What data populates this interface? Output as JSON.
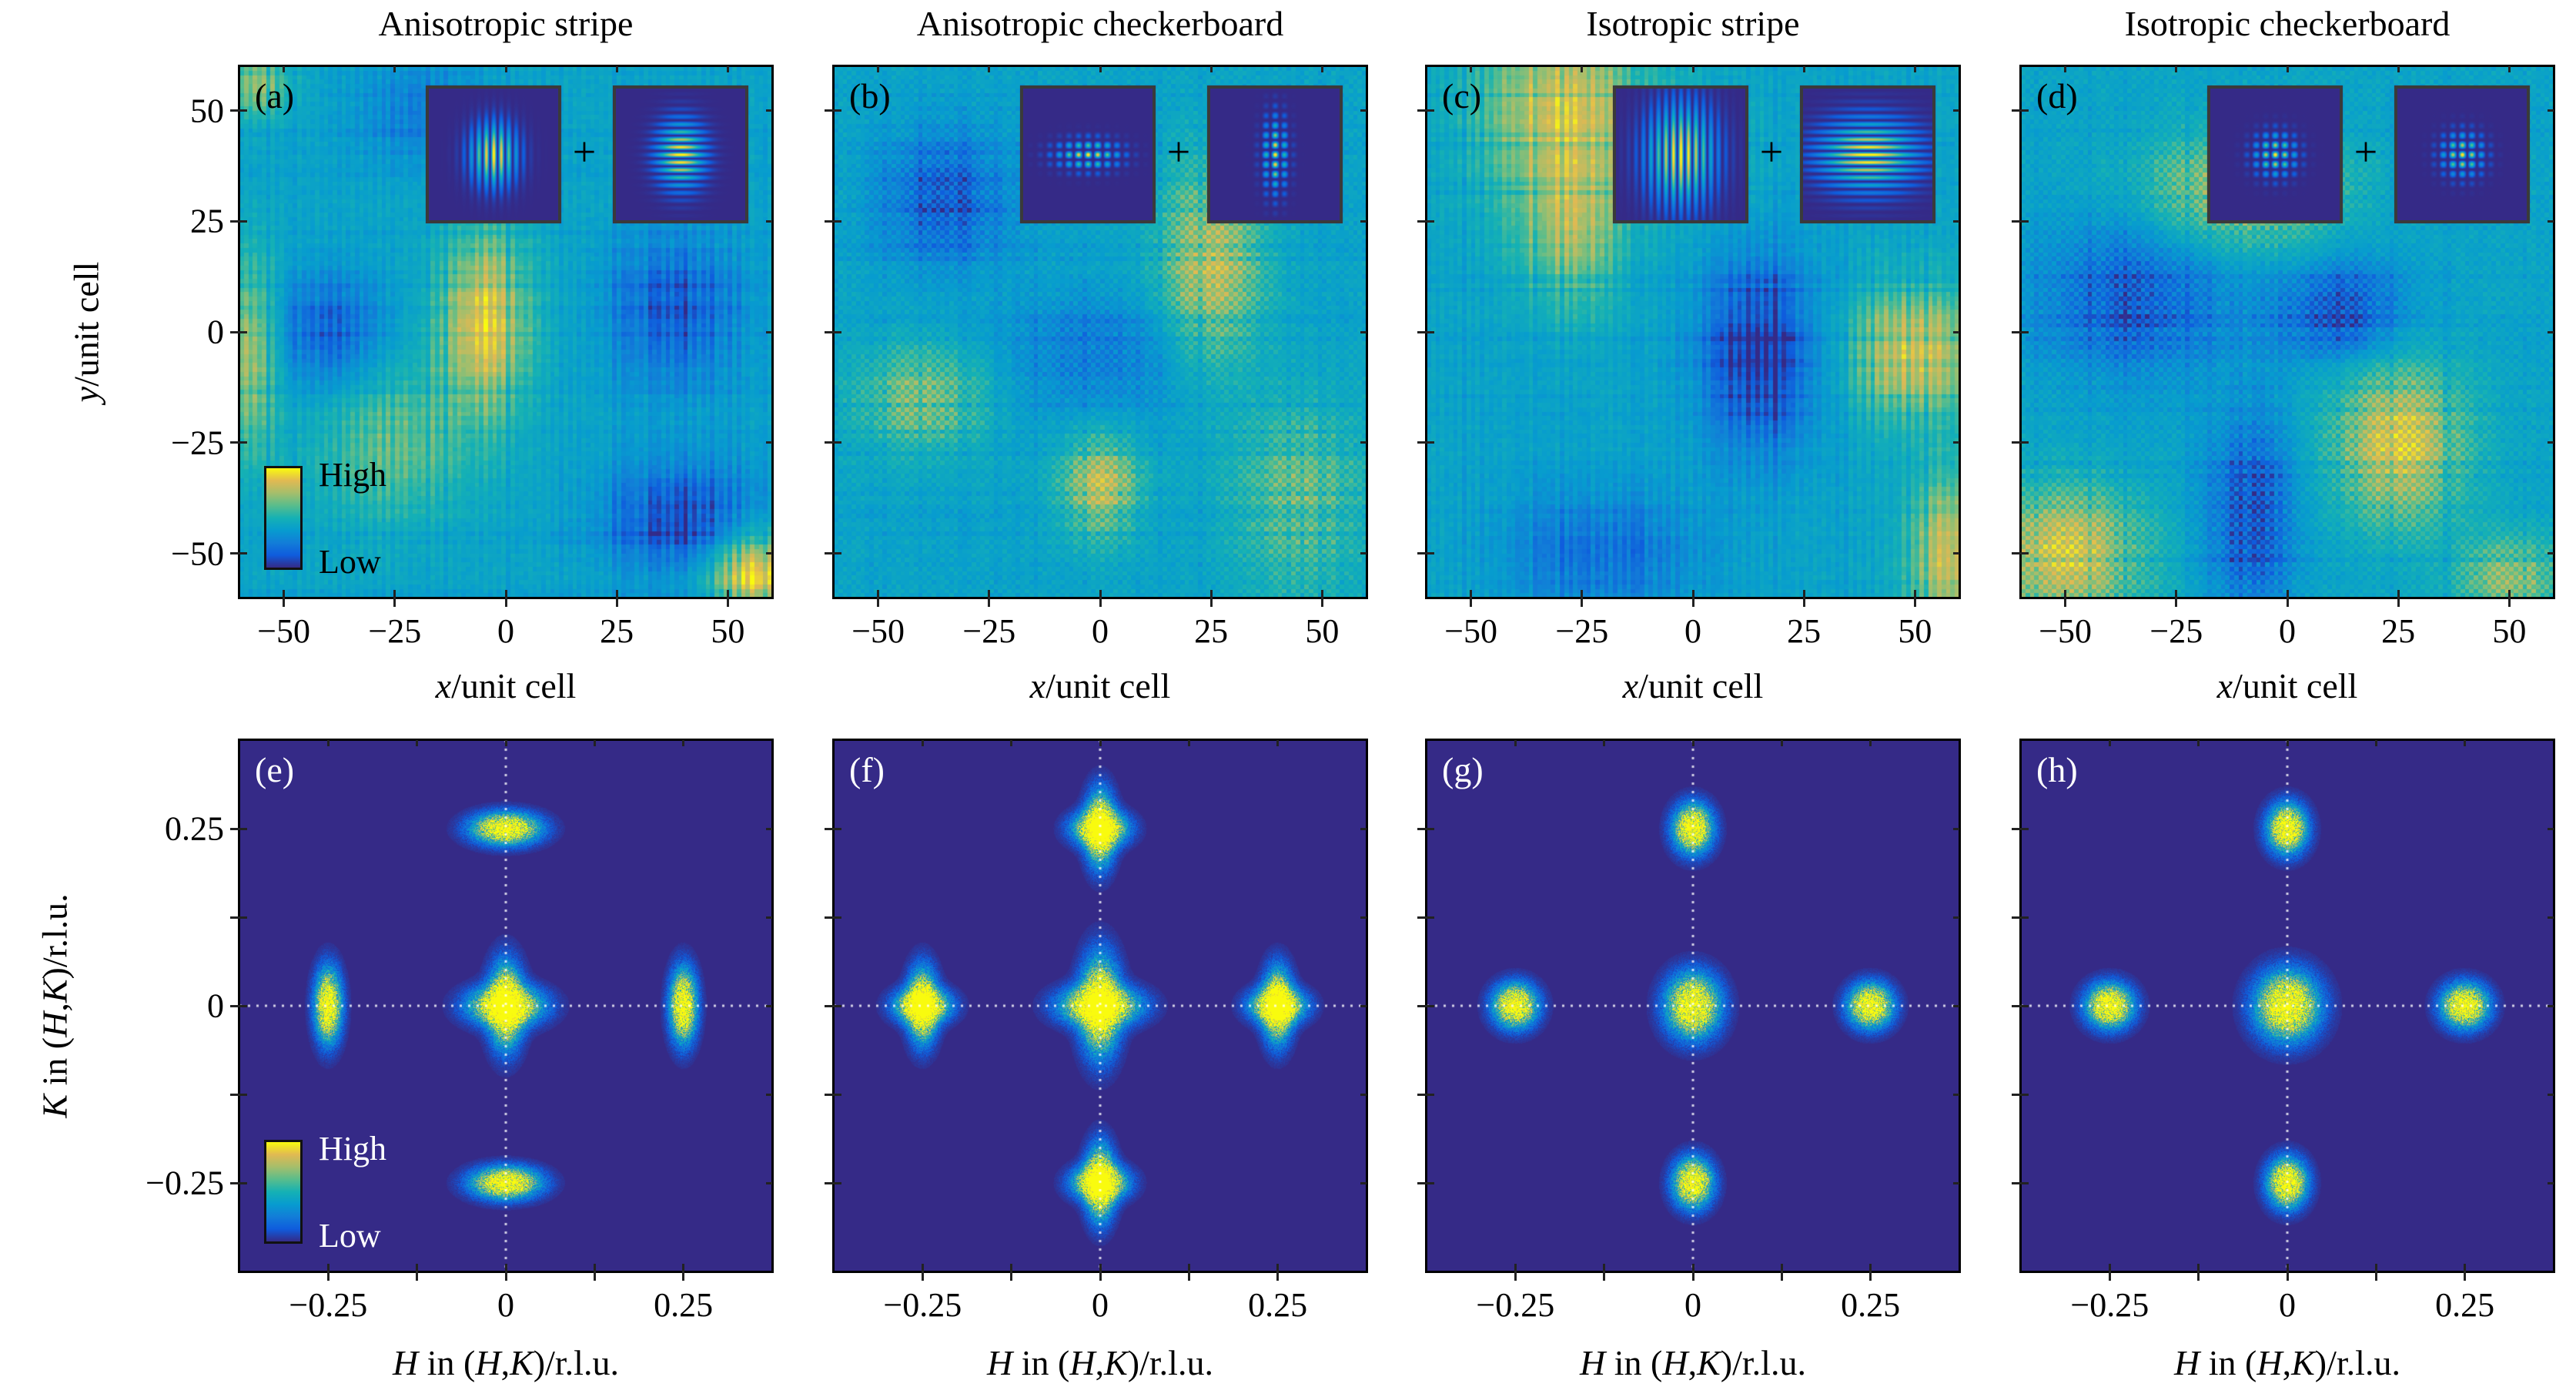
{
  "colormap": {
    "name": "parula",
    "stops": [
      "#352a87",
      "#0f5cdd",
      "#127dd8",
      "#079ccf",
      "#15b1b4",
      "#59bd8c",
      "#a5be6b",
      "#e1b952",
      "#f9fb0e"
    ]
  },
  "chart_data": [
    {
      "panel": "a",
      "type": "heatmap",
      "title": "Anisotropic stripe",
      "label": "(a)",
      "xlabel": [
        {
          "t": "x",
          "i": true
        },
        {
          "t": "/unit cell",
          "i": false
        }
      ],
      "ylabel": [
        {
          "t": "y",
          "i": true
        },
        {
          "t": "/unit cell",
          "i": false
        }
      ],
      "xlim": [
        -60,
        60
      ],
      "ylim": [
        -60,
        60
      ],
      "xticks": [
        -50,
        -25,
        0,
        25,
        50
      ],
      "xtick_labels": [
        "−50",
        "−25",
        "0",
        "25",
        "50"
      ],
      "yticks": [
        -50,
        -25,
        0,
        25,
        50
      ],
      "ytick_labels": [
        "−50",
        "−25",
        "0",
        "25",
        "50"
      ],
      "colorbar": {
        "high": "High",
        "low": "Low"
      },
      "insets": [
        {
          "pattern": "stripe",
          "modulation_axis": "x"
        },
        {
          "pattern": "stripe",
          "modulation_axis": "y"
        }
      ],
      "inset_operator": "+"
    },
    {
      "panel": "b",
      "type": "heatmap",
      "title": "Anisotropic checkerboard",
      "label": "(b)",
      "xlabel": [
        {
          "t": "x",
          "i": true
        },
        {
          "t": "/unit cell",
          "i": false
        }
      ],
      "xlim": [
        -60,
        60
      ],
      "ylim": [
        -60,
        60
      ],
      "xticks": [
        -50,
        -25,
        0,
        25,
        50
      ],
      "xtick_labels": [
        "−50",
        "−25",
        "0",
        "25",
        "50"
      ],
      "yticks": [
        -50,
        -25,
        0,
        25,
        50
      ],
      "insets": [
        {
          "pattern": "checkerboard",
          "envelope": "wide"
        },
        {
          "pattern": "checkerboard",
          "envelope": "tall"
        }
      ],
      "inset_operator": "+"
    },
    {
      "panel": "c",
      "type": "heatmap",
      "title": "Isotropic stripe",
      "label": "(c)",
      "xlabel": [
        {
          "t": "x",
          "i": true
        },
        {
          "t": "/unit cell",
          "i": false
        }
      ],
      "xlim": [
        -60,
        60
      ],
      "ylim": [
        -60,
        60
      ],
      "xticks": [
        -50,
        -25,
        0,
        25,
        50
      ],
      "xtick_labels": [
        "−50",
        "−25",
        "0",
        "25",
        "50"
      ],
      "yticks": [
        -50,
        -25,
        0,
        25,
        50
      ],
      "insets": [
        {
          "pattern": "stripe",
          "modulation_axis": "x"
        },
        {
          "pattern": "stripe",
          "modulation_axis": "y"
        }
      ],
      "inset_operator": "+"
    },
    {
      "panel": "d",
      "type": "heatmap",
      "title": "Isotropic checkerboard",
      "label": "(d)",
      "xlabel": [
        {
          "t": "x",
          "i": true
        },
        {
          "t": "/unit cell",
          "i": false
        }
      ],
      "xlim": [
        -60,
        60
      ],
      "ylim": [
        -60,
        60
      ],
      "xticks": [
        -50,
        -25,
        0,
        25,
        50
      ],
      "xtick_labels": [
        "−50",
        "−25",
        "0",
        "25",
        "50"
      ],
      "yticks": [
        -50,
        -25,
        0,
        25,
        50
      ],
      "insets": [
        {
          "pattern": "checkerboard",
          "envelope": "round"
        },
        {
          "pattern": "checkerboard",
          "envelope": "round"
        }
      ],
      "inset_operator": "+"
    },
    {
      "panel": "e",
      "type": "heatmap",
      "label": "(e)",
      "xlabel": [
        {
          "t": "H",
          "i": true
        },
        {
          "t": " in (",
          "i": false
        },
        {
          "t": "H",
          "i": true
        },
        {
          "t": ",",
          "i": false
        },
        {
          "t": "K",
          "i": true
        },
        {
          "t": ")/r.l.u.",
          "i": false
        }
      ],
      "ylabel": [
        {
          "t": "K",
          "i": true
        },
        {
          "t": " in (",
          "i": false
        },
        {
          "t": "H",
          "i": true
        },
        {
          "t": ",",
          "i": false
        },
        {
          "t": "K",
          "i": true
        },
        {
          "t": ")/r.l.u.",
          "i": false
        }
      ],
      "xlim": [
        -0.375,
        0.375
      ],
      "ylim": [
        -0.375,
        0.375
      ],
      "xticks": [
        -0.25,
        0,
        0.25
      ],
      "xtick_labels": [
        "−0.25",
        "0",
        "0.25"
      ],
      "yticks": [
        -0.25,
        0,
        0.25
      ],
      "ytick_labels": [
        "−0.25",
        "0",
        "0.25"
      ],
      "minor_ticks": [
        -0.125,
        0.125
      ],
      "colorbar": {
        "high": "High",
        "low": "Low"
      },
      "peaks": [
        {
          "H": 0,
          "K": 0.25,
          "sigma_H": 0.028,
          "sigma_K": 0.013
        },
        {
          "H": 0,
          "K": -0.25,
          "sigma_H": 0.028,
          "sigma_K": 0.013
        },
        {
          "H": -0.25,
          "K": 0,
          "sigma_H": 0.011,
          "sigma_K": 0.03
        },
        {
          "H": 0.25,
          "K": 0,
          "sigma_H": 0.011,
          "sigma_K": 0.03
        },
        {
          "H": 0,
          "K": 0,
          "sigma_H": 0.03,
          "sigma_K": 0.016
        },
        {
          "H": 0,
          "K": 0,
          "sigma_H": 0.014,
          "sigma_K": 0.034
        }
      ]
    },
    {
      "panel": "f",
      "type": "heatmap",
      "label": "(f)",
      "xlabel": [
        {
          "t": "H",
          "i": true
        },
        {
          "t": " in (",
          "i": false
        },
        {
          "t": "H",
          "i": true
        },
        {
          "t": ",",
          "i": false
        },
        {
          "t": "K",
          "i": true
        },
        {
          "t": ")/r.l.u.",
          "i": false
        }
      ],
      "xlim": [
        -0.375,
        0.375
      ],
      "ylim": [
        -0.375,
        0.375
      ],
      "xticks": [
        -0.25,
        0,
        0.25
      ],
      "xtick_labels": [
        "−0.25",
        "0",
        "0.25"
      ],
      "yticks": [
        -0.25,
        0,
        0.25
      ],
      "minor_ticks": [
        -0.125,
        0.125
      ],
      "peaks": [
        {
          "H": 0,
          "K": 0.25,
          "sigma_H": 0.012,
          "sigma_K": 0.03
        },
        {
          "H": 0,
          "K": 0.25,
          "sigma_H": 0.022,
          "sigma_K": 0.014
        },
        {
          "H": 0,
          "K": -0.25,
          "sigma_H": 0.012,
          "sigma_K": 0.03
        },
        {
          "H": 0,
          "K": -0.25,
          "sigma_H": 0.022,
          "sigma_K": 0.014
        },
        {
          "H": -0.25,
          "K": 0,
          "sigma_H": 0.022,
          "sigma_K": 0.014
        },
        {
          "H": -0.25,
          "K": 0,
          "sigma_H": 0.012,
          "sigma_K": 0.03
        },
        {
          "H": 0.25,
          "K": 0,
          "sigma_H": 0.022,
          "sigma_K": 0.014
        },
        {
          "H": 0.25,
          "K": 0,
          "sigma_H": 0.012,
          "sigma_K": 0.03
        },
        {
          "H": 0,
          "K": 0,
          "sigma_H": 0.032,
          "sigma_K": 0.016
        },
        {
          "H": 0,
          "K": 0,
          "sigma_H": 0.016,
          "sigma_K": 0.04
        }
      ]
    },
    {
      "panel": "g",
      "type": "heatmap",
      "label": "(g)",
      "xlabel": [
        {
          "t": "H",
          "i": true
        },
        {
          "t": " in (",
          "i": false
        },
        {
          "t": "H",
          "i": true
        },
        {
          "t": ",",
          "i": false
        },
        {
          "t": "K",
          "i": true
        },
        {
          "t": ")/r.l.u.",
          "i": false
        }
      ],
      "xlim": [
        -0.375,
        0.375
      ],
      "ylim": [
        -0.375,
        0.375
      ],
      "xticks": [
        -0.25,
        0,
        0.25
      ],
      "xtick_labels": [
        "−0.25",
        "0",
        "0.25"
      ],
      "yticks": [
        -0.25,
        0,
        0.25
      ],
      "minor_ticks": [
        -0.125,
        0.125
      ],
      "peaks": [
        {
          "H": 0,
          "K": 0.25,
          "sigma_H": 0.016,
          "sigma_K": 0.02
        },
        {
          "H": 0,
          "K": -0.25,
          "sigma_H": 0.016,
          "sigma_K": 0.02
        },
        {
          "H": -0.25,
          "K": 0,
          "sigma_H": 0.018,
          "sigma_K": 0.018
        },
        {
          "H": 0.25,
          "K": 0,
          "sigma_H": 0.018,
          "sigma_K": 0.018
        },
        {
          "H": 0,
          "K": 0,
          "sigma_H": 0.022,
          "sigma_K": 0.026
        }
      ]
    },
    {
      "panel": "h",
      "type": "heatmap",
      "label": "(h)",
      "xlabel": [
        {
          "t": "H",
          "i": true
        },
        {
          "t": " in (",
          "i": false
        },
        {
          "t": "H",
          "i": true
        },
        {
          "t": ",",
          "i": false
        },
        {
          "t": "K",
          "i": true
        },
        {
          "t": ")/r.l.u.",
          "i": false
        }
      ],
      "xlim": [
        -0.375,
        0.375
      ],
      "ylim": [
        -0.375,
        0.375
      ],
      "xticks": [
        -0.25,
        0,
        0.25
      ],
      "xtick_labels": [
        "−0.25",
        "0",
        "0.25"
      ],
      "yticks": [
        -0.25,
        0,
        0.25
      ],
      "minor_ticks": [
        -0.125,
        0.125
      ],
      "peaks": [
        {
          "H": 0,
          "K": 0.25,
          "sigma_H": 0.016,
          "sigma_K": 0.02
        },
        {
          "H": 0,
          "K": -0.25,
          "sigma_H": 0.016,
          "sigma_K": 0.02
        },
        {
          "H": -0.25,
          "K": 0,
          "sigma_H": 0.019,
          "sigma_K": 0.018
        },
        {
          "H": 0.25,
          "K": 0,
          "sigma_H": 0.019,
          "sigma_K": 0.018
        },
        {
          "H": 0,
          "K": 0,
          "sigma_H": 0.026,
          "sigma_K": 0.028
        }
      ]
    }
  ]
}
